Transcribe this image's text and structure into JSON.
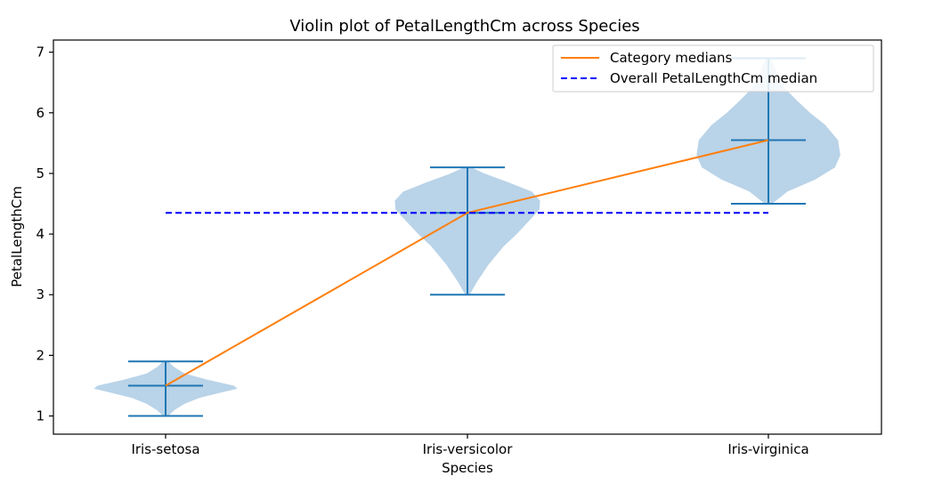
{
  "chart_data": {
    "type": "violin",
    "title": "Violin plot of PetalLengthCm across Species",
    "xlabel": "Species",
    "ylabel": "PetalLengthCm",
    "ylim": [
      0.7,
      7.2
    ],
    "yticks": [
      "1",
      "2",
      "3",
      "4",
      "5",
      "6",
      "7"
    ],
    "categories": [
      "Iris-setosa",
      "Iris-versicolor",
      "Iris-virginica"
    ],
    "violins": [
      {
        "category": "Iris-setosa",
        "min": 1.0,
        "max": 1.9,
        "median": 1.5,
        "density": [
          [
            1.0,
            0.03
          ],
          [
            1.1,
            0.12
          ],
          [
            1.2,
            0.25
          ],
          [
            1.3,
            0.45
          ],
          [
            1.4,
            0.78
          ],
          [
            1.45,
            0.95
          ],
          [
            1.5,
            0.9
          ],
          [
            1.6,
            0.55
          ],
          [
            1.7,
            0.25
          ],
          [
            1.8,
            0.12
          ],
          [
            1.9,
            0.03
          ]
        ]
      },
      {
        "category": "Iris-versicolor",
        "min": 3.0,
        "max": 5.1,
        "median": 4.35,
        "density": [
          [
            3.0,
            0.03
          ],
          [
            3.2,
            0.12
          ],
          [
            3.5,
            0.28
          ],
          [
            3.8,
            0.48
          ],
          [
            4.0,
            0.65
          ],
          [
            4.2,
            0.8
          ],
          [
            4.4,
            0.95
          ],
          [
            4.55,
            0.96
          ],
          [
            4.7,
            0.85
          ],
          [
            4.85,
            0.55
          ],
          [
            5.0,
            0.22
          ],
          [
            5.1,
            0.05
          ]
        ]
      },
      {
        "category": "Iris-virginica",
        "min": 4.5,
        "max": 6.9,
        "median": 5.55,
        "density": [
          [
            4.5,
            0.05
          ],
          [
            4.7,
            0.25
          ],
          [
            4.9,
            0.62
          ],
          [
            5.1,
            0.88
          ],
          [
            5.3,
            0.95
          ],
          [
            5.55,
            0.92
          ],
          [
            5.8,
            0.75
          ],
          [
            6.0,
            0.55
          ],
          [
            6.2,
            0.38
          ],
          [
            6.4,
            0.22
          ],
          [
            6.7,
            0.1
          ],
          [
            6.9,
            0.03
          ]
        ]
      }
    ],
    "series": [
      {
        "name": "Category medians",
        "type": "line",
        "color": "#ff7f0e",
        "values": [
          1.5,
          4.35,
          5.55
        ]
      },
      {
        "name": "Overall PetalLengthCm median",
        "type": "hline",
        "style": "dashed",
        "color": "#0000ff",
        "value": 4.35
      }
    ],
    "violin_fill": "#b9d3e8",
    "violin_line": "#1f77b4",
    "legend_position": "top-right",
    "grid": false
  }
}
